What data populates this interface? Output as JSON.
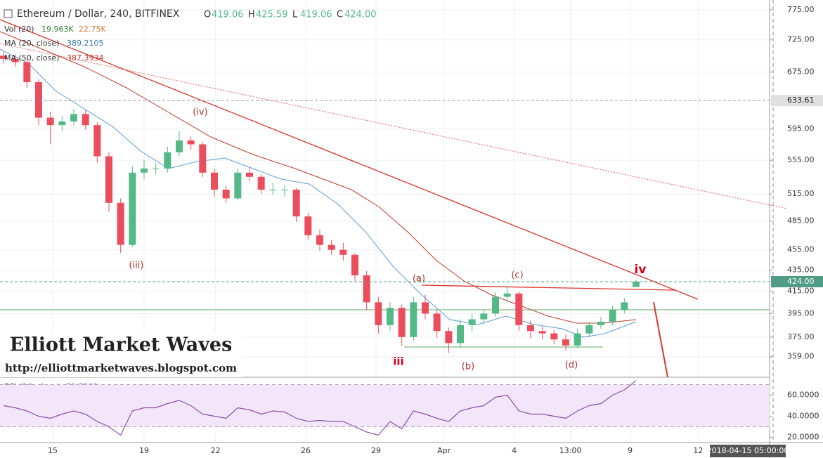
{
  "header": {
    "title": "Ethereum / Dollar, 240, BITFINEX",
    "ohlc": [
      {
        "label": "O",
        "value": "419.06"
      },
      {
        "label": "H",
        "value": "425.59"
      },
      {
        "label": "L",
        "value": "419.06"
      },
      {
        "label": "C",
        "value": "424.00"
      }
    ],
    "volume": {
      "label": "Vol (20)",
      "value": "19.963K",
      "average": "22.75K"
    },
    "ma20": {
      "label": "MA (20, close)",
      "value": "389.2105"
    },
    "ma50": {
      "label": "MA (50, close)",
      "value": "387.3934"
    },
    "rsi": {
      "label": "RSI (14, close)",
      "value": "73.7902"
    }
  },
  "annotations": [
    "(iv)",
    "(iii)",
    "iii",
    "(a)",
    "(b)",
    "(c)",
    "(d)",
    "iv"
  ],
  "watermark": {
    "title": "Elliott Market Waves",
    "url": "http://elliottmarketwaves.blogspot.com"
  },
  "crosshair_time": "2018-04-15 05:00:00",
  "chart_data": {
    "type": "candlestick",
    "log_scale": true,
    "up_color": "#53b987",
    "down_color": "#eb4d5c",
    "xlim": [
      -0.3,
      65.4
    ],
    "xticks": [
      {
        "value": 4.2,
        "label": "15"
      },
      {
        "value": 12.0,
        "label": "19"
      },
      {
        "value": 18.1,
        "label": "22"
      },
      {
        "value": 25.8,
        "label": "26"
      },
      {
        "value": 31.8,
        "label": "29"
      },
      {
        "value": 37.6,
        "label": "Apr"
      },
      {
        "value": 43.6,
        "label": "4"
      },
      {
        "value": 48.4,
        "label": "13:00"
      },
      {
        "value": 53.5,
        "label": "9"
      },
      {
        "value": 59.3,
        "label": "12"
      }
    ],
    "ylim": [
      343,
      792
    ],
    "yticks": [
      {
        "value": 359,
        "label": "359.00"
      },
      {
        "value": 375,
        "label": "375.00"
      },
      {
        "value": 395,
        "label": "395.00"
      },
      {
        "value": 415,
        "label": "415.00"
      },
      {
        "value": 435,
        "label": "435.00"
      },
      {
        "value": 455,
        "label": "455.00"
      },
      {
        "value": 485,
        "label": "485.00"
      },
      {
        "value": 515,
        "label": "515.00"
      },
      {
        "value": 555,
        "label": "555.00"
      },
      {
        "value": 595,
        "label": "595.00"
      },
      {
        "value": 675,
        "label": "675.00"
      },
      {
        "value": 725,
        "label": "725.00"
      },
      {
        "value": 775,
        "label": "775.00"
      }
    ],
    "price_markers": [
      {
        "value": 633.61,
        "label": "633.61",
        "color": "#e0e0e0"
      },
      {
        "value": 424,
        "label": "424.00",
        "color": "#4f9d86"
      }
    ],
    "open": [
      700,
      695,
      690,
      660,
      610,
      600,
      605,
      615,
      600,
      560,
      505,
      460,
      540,
      545,
      545,
      565,
      580,
      575,
      540,
      520,
      510,
      540,
      535,
      520,
      520,
      520,
      490,
      470,
      460,
      455,
      450,
      430,
      405,
      385,
      400,
      375,
      405,
      395,
      380,
      370,
      385,
      390,
      395,
      410,
      413,
      385,
      380,
      378,
      373,
      368,
      378,
      385,
      388,
      398,
      419.06
    ],
    "high": [
      706,
      702,
      694,
      664,
      618,
      612,
      622,
      620,
      604,
      565,
      510,
      548,
      555,
      552,
      572,
      592,
      585,
      578,
      545,
      525,
      545,
      546,
      538,
      528,
      525,
      522,
      494,
      476,
      465,
      462,
      452,
      434,
      410,
      405,
      403,
      410,
      412,
      398,
      383,
      390,
      395,
      398,
      414,
      420,
      415,
      389,
      384,
      381,
      377,
      382,
      388,
      392,
      402,
      409,
      425.59
    ],
    "low": [
      688,
      683,
      652,
      600,
      575,
      592,
      600,
      594,
      552,
      495,
      452,
      458,
      532,
      538,
      540,
      560,
      568,
      535,
      512,
      505,
      508,
      530,
      515,
      514,
      512,
      484,
      465,
      454,
      450,
      444,
      425,
      398,
      378,
      380,
      368,
      372,
      390,
      374,
      362,
      366,
      380,
      386,
      392,
      405,
      380,
      374,
      373,
      369,
      364,
      366,
      375,
      382,
      385,
      395,
      419.06
    ],
    "close": [
      695,
      690,
      660,
      610,
      600,
      605,
      615,
      600,
      560,
      505,
      460,
      540,
      545,
      545,
      565,
      580,
      575,
      540,
      520,
      510,
      540,
      535,
      520,
      520,
      520,
      490,
      470,
      460,
      455,
      450,
      430,
      405,
      385,
      400,
      375,
      405,
      395,
      380,
      370,
      385,
      390,
      395,
      410,
      413,
      385,
      380,
      378,
      373,
      368,
      378,
      385,
      388,
      398,
      405,
      424
    ],
    "rsi": {
      "color": "#8e4fa8",
      "band": [
        30,
        70
      ],
      "ylim": [
        15,
        77
      ],
      "yticks": [
        {
          "value": 20,
          "label": "20.0000"
        },
        {
          "value": 40,
          "label": "40.0000"
        },
        {
          "value": 60,
          "label": "60.0000"
        }
      ],
      "values": [
        50,
        48,
        45,
        40,
        38,
        42,
        45,
        42,
        35,
        30,
        22,
        45,
        48,
        48,
        52,
        55,
        50,
        42,
        40,
        38,
        48,
        46,
        42,
        45,
        44,
        38,
        35,
        36,
        35,
        35,
        30,
        25,
        22,
        35,
        28,
        45,
        42,
        38,
        35,
        45,
        48,
        50,
        58,
        60,
        45,
        42,
        42,
        40,
        38,
        45,
        50,
        52,
        60,
        65,
        73.7902
      ]
    }
  }
}
